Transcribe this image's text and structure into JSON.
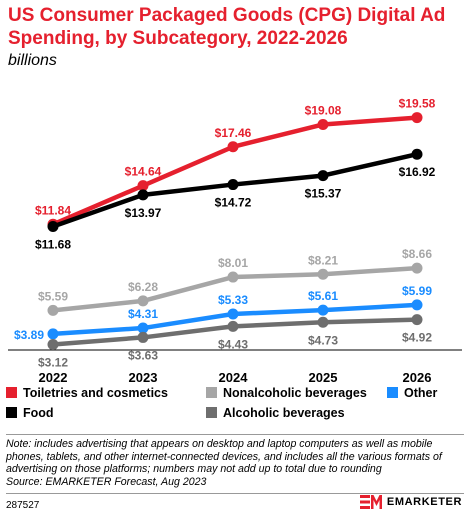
{
  "header": {
    "title": "US Consumer Packaged Goods (CPG) Digital Ad Spending, by Subcategory, 2022-2026",
    "subtitle": "billions"
  },
  "chart_data": {
    "type": "line",
    "x": [
      "2022",
      "2023",
      "2024",
      "2025",
      "2026"
    ],
    "ylim": [
      2.5,
      21
    ],
    "grid": false,
    "legend_placement": "bottom",
    "series": [
      {
        "name": "Toiletries and cosmetics",
        "color": "#e5202e",
        "values": [
          11.84,
          14.64,
          17.46,
          19.08,
          19.58
        ],
        "labels": [
          "$11.84",
          "$14.64",
          "$17.46",
          "$19.08",
          "$19.58"
        ]
      },
      {
        "name": "Food",
        "color": "#000000",
        "values": [
          11.68,
          13.97,
          14.72,
          15.37,
          16.92
        ],
        "labels": [
          "$11.68",
          "$13.97",
          "$14.72",
          "$15.37",
          "$16.92"
        ]
      },
      {
        "name": "Nonalcoholic beverages",
        "color": "#a6a6a6",
        "values": [
          5.59,
          6.28,
          8.01,
          8.21,
          8.66
        ],
        "labels": [
          "$5.59",
          "$6.28",
          "$8.01",
          "$8.21",
          "$8.66"
        ]
      },
      {
        "name": "Other",
        "color": "#1a8cff",
        "values": [
          3.89,
          4.31,
          5.33,
          5.61,
          5.99
        ],
        "labels": [
          "$3.89",
          "$4.31",
          "$5.33",
          "$5.61",
          "$5.99"
        ]
      },
      {
        "name": "Alcoholic beverages",
        "color": "#6e6e6e",
        "values": [
          3.12,
          3.63,
          4.43,
          4.73,
          4.92
        ],
        "labels": [
          "$3.12",
          "$3.63",
          "$4.43",
          "$4.73",
          "$4.92"
        ]
      }
    ]
  },
  "footer": {
    "note": "Note: includes advertising that appears on desktop and laptop computers as well as mobile phones, tablets, and other internet-connected devices, and includes all the various formats of advertising on those platforms; numbers may not add up to total due to rounding",
    "source": "Source: EMARKETER Forecast, Aug 2023",
    "code": "287527",
    "brand": "EMARKETER",
    "brand_color": "#e5202e"
  }
}
